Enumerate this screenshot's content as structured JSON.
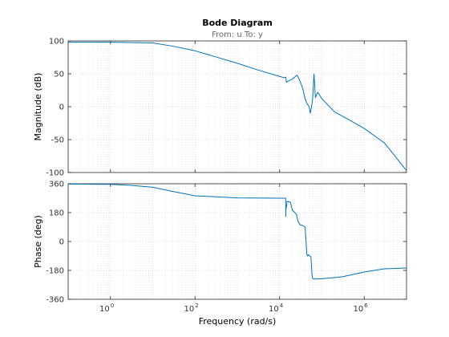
{
  "title": "Bode Diagram",
  "subtitle": "From: u  To: y",
  "chart_data": {
    "type": "line",
    "title": "Bode Diagram",
    "subtitle": "From: u  To: y",
    "xlabel": "Frequency  (rad/s)",
    "xscale": "log",
    "xlim": [
      0.1,
      10000000
    ],
    "xticks": [
      {
        "value": 1,
        "base": "10",
        "exp": "0"
      },
      {
        "value": 100,
        "base": "10",
        "exp": "2"
      },
      {
        "value": 10000,
        "base": "10",
        "exp": "4"
      },
      {
        "value": 1000000,
        "base": "10",
        "exp": "6"
      }
    ],
    "grid": true,
    "color": "#0072bd",
    "panels": [
      {
        "name": "magnitude",
        "ylabel": "Magnitude (dB)",
        "ylim": [
          -100,
          100
        ],
        "yticks": [
          "100",
          "50",
          "0",
          "-50",
          "-100"
        ],
        "ytick_values": [
          100,
          50,
          0,
          -50,
          -100
        ],
        "series": [
          {
            "x": [
              0.1,
              1,
              10,
              30,
              100,
              300,
              1000,
              3000,
              10000,
              13000,
              14000,
              14500,
              15000,
              20000,
              26000,
              30000,
              35000,
              40000,
              45000,
              50000,
              53000,
              56000,
              60000,
              65000,
              70000,
              80000,
              100000,
              200000,
              500000,
              1000000,
              3000000,
              10000000
            ],
            "y": [
              98,
              98,
              97,
              92,
              85,
              76,
              66,
              56,
              46,
              44,
              45,
              37,
              38,
              42,
              48,
              40,
              28,
              12,
              4,
              0,
              -10,
              -2,
              10,
              50,
              14,
              22,
              12,
              -8,
              -22,
              -33,
              -55,
              -97
            ]
          }
        ]
      },
      {
        "name": "phase",
        "ylabel": "Phase (deg)",
        "ylim": [
          -360,
          360
        ],
        "yticks": [
          "360",
          "180",
          "0",
          "-180",
          "-360"
        ],
        "ytick_values": [
          360,
          180,
          0,
          -180,
          -360
        ],
        "series": [
          {
            "x": [
              0.1,
              1,
              3,
              10,
              30,
              100,
              1000,
              10000,
              13000,
              13900,
              14000,
              14100,
              14400,
              15000,
              18000,
              20000,
              25000,
              27000,
              30000,
              35000,
              40000,
              44000,
              46000,
              48000,
              52000,
              55000,
              58000,
              60000,
              65000,
              100000,
              300000,
              1000000,
              3000000,
              10000000
            ],
            "y": [
              358,
              356,
              350,
              338,
              312,
              285,
              272,
              270,
              270,
              270,
              155,
              215,
              210,
              250,
              245,
              195,
              170,
              130,
              105,
              100,
              90,
              -80,
              -90,
              -82,
              -90,
              -95,
              -200,
              -230,
              -234,
              -232,
              -220,
              -190,
              -170,
              -165
            ]
          }
        ]
      }
    ]
  }
}
